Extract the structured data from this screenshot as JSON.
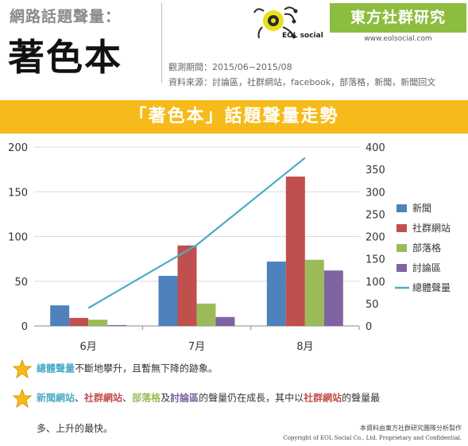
{
  "header": {
    "topic_label": "網路話題聲量：",
    "subject": "著色本",
    "period": "觀測期間：2015/06~2015/08",
    "sources": "資料來源：討論區，社群網站，facebook，部落格，新聞，新聞回文"
  },
  "brand": {
    "name": "東方社群研究",
    "url": "www.eolsocial.com",
    "logo_text": "EOL social"
  },
  "chart_data": {
    "type": "bar",
    "title": "「著色本」話題聲量走勢",
    "categories": [
      "6月",
      "7月",
      "8月"
    ],
    "ylim_left": [
      0,
      200
    ],
    "yticks_left": [
      "0",
      "50",
      "100",
      "150",
      "200"
    ],
    "ylim_right": [
      0,
      400
    ],
    "yticks_right": [
      "0",
      "50",
      "100",
      "150",
      "200",
      "250",
      "300",
      "350",
      "400"
    ],
    "grid": true,
    "legend_position": "right",
    "series": [
      {
        "name": "新聞",
        "axis": "left",
        "color": "#4f81bd",
        "values": [
          23,
          56,
          72
        ]
      },
      {
        "name": "社群網站",
        "axis": "left",
        "color": "#c0504d",
        "values": [
          9,
          90,
          167
        ]
      },
      {
        "name": "部落格",
        "axis": "left",
        "color": "#9bbb59",
        "values": [
          7,
          25,
          74
        ]
      },
      {
        "name": "討論區",
        "axis": "left",
        "color": "#8064a2",
        "values": [
          1,
          10,
          62
        ]
      },
      {
        "name": "總體聲量",
        "axis": "right",
        "type": "line",
        "color": "#4bacc6",
        "values": [
          40,
          181,
          376
        ]
      }
    ]
  },
  "notes": {
    "note1_hl": "總體聲量",
    "note1_rest": "不斷地攀升，且暫無下降的跡象。",
    "note2_a": "新聞網站",
    "note2_sep1": "、",
    "note2_b": "社群網站",
    "note2_sep2": "、",
    "note2_c": "部落格",
    "note2_sep3": "及",
    "note2_d": "討論區",
    "note2_mid": "的聲量仍在成長，其中以",
    "note2_e": "社群網站",
    "note2_end": "的聲量最",
    "note2_line2": "多、上升的最快。",
    "colors": {
      "blue": "#4bacc6",
      "red": "#c0504d",
      "green": "#9bbb59",
      "purple": "#8064a2",
      "star": "#f6bb1a"
    }
  },
  "footer": {
    "line1": "本資料由東方社群研究團隊分析製作",
    "line2": "Copyright of EOL Social  Co., Ltd. Proprietary and Confidential."
  }
}
